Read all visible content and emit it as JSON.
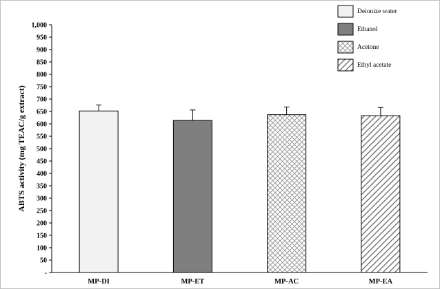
{
  "chart_data": {
    "type": "bar",
    "ylabel": "ABTS activity (mg TEAC/g extract)",
    "ylim": [
      0,
      1000
    ],
    "y_ticks": [
      0,
      50,
      100,
      150,
      200,
      250,
      300,
      350,
      400,
      450,
      500,
      550,
      600,
      650,
      700,
      750,
      800,
      850,
      900,
      950,
      1000
    ],
    "y_tick_labels": [
      "-",
      "50",
      "100",
      "150",
      "200",
      "250",
      "300",
      "350",
      "400",
      "450",
      "500",
      "550",
      "600",
      "650",
      "700",
      "750",
      "800",
      "850",
      "900",
      "950",
      "1,000"
    ],
    "categories": [
      "MP-DI",
      "MP-ET",
      "MP-AC",
      "MP-EA"
    ],
    "values": [
      652,
      614,
      637,
      633
    ],
    "errors": [
      24,
      42,
      31,
      33
    ],
    "grid": false,
    "legend_position": "top-right",
    "series": [
      {
        "name": "Deionize water",
        "fill": "solid",
        "color": "#f2f2f2"
      },
      {
        "name": "Ethanol",
        "fill": "solid",
        "color": "#7f7f7f"
      },
      {
        "name": "Acetone",
        "fill": "crosshatch",
        "color": "#8c8c8c"
      },
      {
        "name": "Ethyl acetate",
        "fill": "diagonal",
        "color": "#666666"
      }
    ]
  }
}
